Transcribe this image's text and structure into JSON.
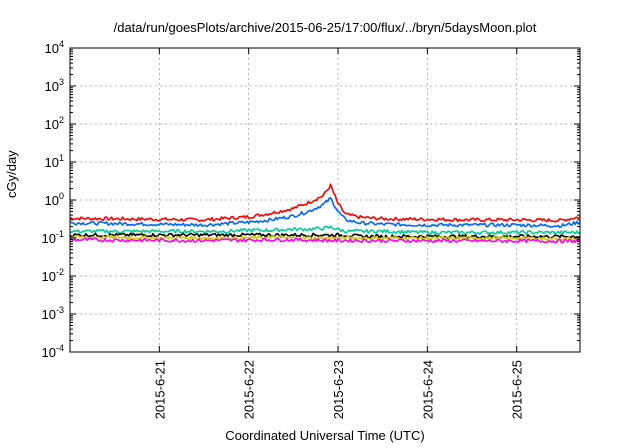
{
  "chart_data": {
    "type": "line",
    "title": "/data/run/goesPlots/archive/2015-06-25/17:00/flux/../bryn/5daysMoon.plot",
    "xlabel": "Coordinated Universal Time (UTC)",
    "ylabel": "cGy/day",
    "yscale": "log",
    "ylim": [
      0.0001,
      10000
    ],
    "y_ticks": [
      {
        "value": 0.0001,
        "base": "10",
        "exp": "-4"
      },
      {
        "value": 0.001,
        "base": "10",
        "exp": "-3"
      },
      {
        "value": 0.01,
        "base": "10",
        "exp": "-2"
      },
      {
        "value": 0.1,
        "base": "10",
        "exp": "-1"
      },
      {
        "value": 1,
        "base": "10",
        "exp": "0"
      },
      {
        "value": 10,
        "base": "10",
        "exp": "1"
      },
      {
        "value": 100,
        "base": "10",
        "exp": "2"
      },
      {
        "value": 1000,
        "base": "10",
        "exp": "3"
      },
      {
        "value": 10000,
        "base": "10",
        "exp": "4"
      }
    ],
    "xlim": [
      "2015-06-20T00:00",
      "2015-06-25T17:00"
    ],
    "x_ticks": [
      {
        "value": "2015-06-21T00:00",
        "label": "2015-6-21"
      },
      {
        "value": "2015-06-22T00:00",
        "label": "2015-6-22"
      },
      {
        "value": "2015-06-23T00:00",
        "label": "2015-6-23"
      },
      {
        "value": "2015-06-24T00:00",
        "label": "2015-6-24"
      },
      {
        "value": "2015-06-25T00:00",
        "label": "2015-6-25"
      }
    ],
    "grid": true,
    "x": [
      "2015-06-20T00:00",
      "2015-06-20T12:00",
      "2015-06-21T00:00",
      "2015-06-21T12:00",
      "2015-06-21T18:00",
      "2015-06-22T00:00",
      "2015-06-22T06:00",
      "2015-06-22T12:00",
      "2015-06-22T16:00",
      "2015-06-22T20:00",
      "2015-06-22T22:00",
      "2015-06-23T00:00",
      "2015-06-23T02:00",
      "2015-06-23T06:00",
      "2015-06-23T12:00",
      "2015-06-24T00:00",
      "2015-06-24T12:00",
      "2015-06-25T00:00",
      "2015-06-25T12:00",
      "2015-06-25T17:00"
    ],
    "series": [
      {
        "color": "#ff0000",
        "values": [
          0.33,
          0.32,
          0.31,
          0.3,
          0.33,
          0.36,
          0.45,
          0.6,
          0.85,
          1.3,
          2.4,
          0.8,
          0.42,
          0.35,
          0.32,
          0.31,
          0.3,
          0.3,
          0.29,
          0.36
        ]
      },
      {
        "color": "#0066ff",
        "values": [
          0.25,
          0.24,
          0.23,
          0.22,
          0.24,
          0.26,
          0.3,
          0.38,
          0.5,
          0.75,
          1.1,
          0.5,
          0.3,
          0.25,
          0.23,
          0.22,
          0.22,
          0.22,
          0.21,
          0.26
        ]
      },
      {
        "color": "#00cc99",
        "values": [
          0.15,
          0.15,
          0.15,
          0.15,
          0.15,
          0.16,
          0.16,
          0.17,
          0.17,
          0.18,
          0.19,
          0.17,
          0.15,
          0.15,
          0.15,
          0.14,
          0.14,
          0.14,
          0.14,
          0.14
        ]
      },
      {
        "color": "#000000",
        "values": [
          0.12,
          0.12,
          0.12,
          0.12,
          0.12,
          0.12,
          0.12,
          0.12,
          0.12,
          0.12,
          0.12,
          0.12,
          0.12,
          0.11,
          0.11,
          0.11,
          0.11,
          0.11,
          0.11,
          0.11
        ]
      },
      {
        "color": "#cccc00",
        "values": [
          0.105,
          0.105,
          0.1,
          0.1,
          0.1,
          0.1,
          0.105,
          0.1,
          0.1,
          0.1,
          0.1,
          0.1,
          0.1,
          0.1,
          0.1,
          0.1,
          0.1,
          0.1,
          0.095,
          0.095
        ]
      },
      {
        "color": "#ff00ff",
        "values": [
          0.09,
          0.088,
          0.087,
          0.086,
          0.087,
          0.088,
          0.09,
          0.09,
          0.088,
          0.087,
          0.086,
          0.085,
          0.086,
          0.086,
          0.085,
          0.085,
          0.084,
          0.084,
          0.083,
          0.083
        ]
      }
    ]
  }
}
